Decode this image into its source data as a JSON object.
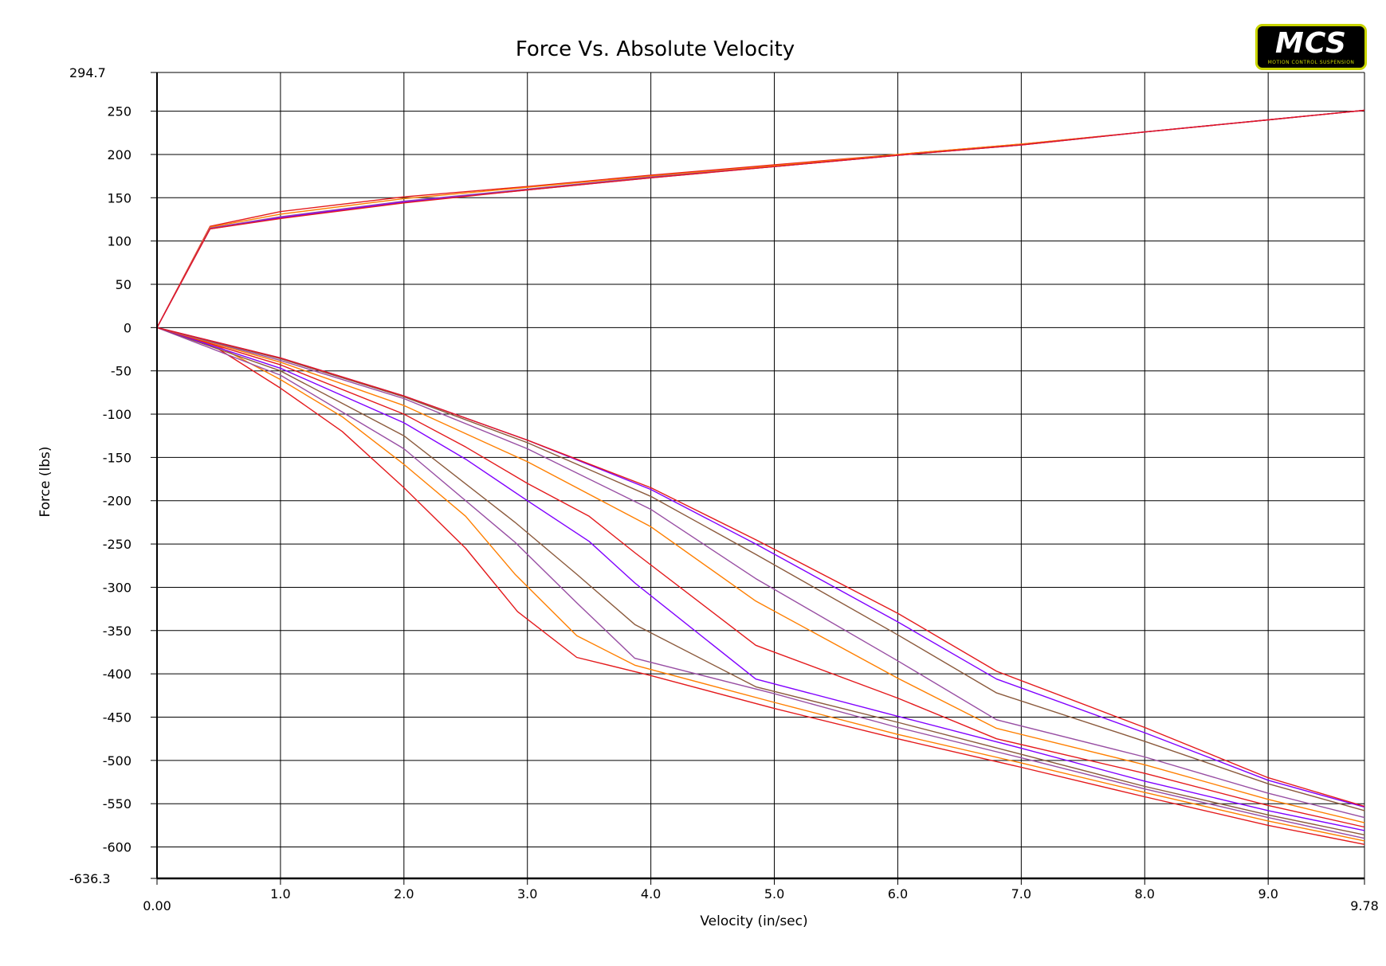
{
  "logo": {
    "main": "MCS",
    "sub": "MOTION CONTROL SUSPENSION"
  },
  "chart_data": {
    "type": "line",
    "title": "Force Vs. Absolute Velocity",
    "xlabel": "Velocity (in/sec)",
    "ylabel": "Force (lbs)",
    "xlim": [
      0,
      9.78
    ],
    "ylim": [
      -636.3,
      294.7
    ],
    "x_ticks": [
      {
        "v": 0,
        "label": "0.00"
      },
      {
        "v": 1,
        "label": "1.0"
      },
      {
        "v": 2,
        "label": "2.0"
      },
      {
        "v": 3,
        "label": "3.0"
      },
      {
        "v": 4,
        "label": "4.0"
      },
      {
        "v": 5,
        "label": "5.0"
      },
      {
        "v": 6,
        "label": "6.0"
      },
      {
        "v": 7,
        "label": "7.0"
      },
      {
        "v": 8,
        "label": "8.0"
      },
      {
        "v": 9,
        "label": "9.0"
      },
      {
        "v": 9.78,
        "label": "9.78"
      }
    ],
    "y_ticks": [
      {
        "v": 294.7,
        "label": "294.7"
      },
      {
        "v": 250,
        "label": "250"
      },
      {
        "v": 200,
        "label": "200"
      },
      {
        "v": 150,
        "label": "150"
      },
      {
        "v": 100,
        "label": "100"
      },
      {
        "v": 50,
        "label": "50"
      },
      {
        "v": 0,
        "label": "0"
      },
      {
        "v": -50,
        "label": "-50"
      },
      {
        "v": -100,
        "label": "-100"
      },
      {
        "v": -150,
        "label": "-150"
      },
      {
        "v": -200,
        "label": "-200"
      },
      {
        "v": -250,
        "label": "-250"
      },
      {
        "v": -300,
        "label": "-300"
      },
      {
        "v": -350,
        "label": "-350"
      },
      {
        "v": -400,
        "label": "-400"
      },
      {
        "v": -450,
        "label": "-450"
      },
      {
        "v": -500,
        "label": "-500"
      },
      {
        "v": -550,
        "label": "-550"
      },
      {
        "v": -600,
        "label": "-600"
      },
      {
        "v": -636.3,
        "label": "-636.3"
      }
    ],
    "grid": true,
    "legend": "none",
    "series": [
      {
        "color": "#e41a1c",
        "points": [
          [
            0,
            0
          ],
          [
            0.43,
            117
          ],
          [
            1.0,
            134
          ],
          [
            2.0,
            151
          ],
          [
            3.0,
            163
          ],
          [
            4.0,
            176
          ],
          [
            5.0,
            188
          ],
          [
            6.0,
            200
          ],
          [
            7.0,
            212
          ],
          [
            8.0,
            226
          ],
          [
            9.0,
            240
          ],
          [
            9.78,
            251
          ]
        ]
      },
      {
        "color": "#ff7f00",
        "points": [
          [
            0,
            0
          ],
          [
            0.43,
            116
          ],
          [
            1.0,
            131
          ],
          [
            2.0,
            149
          ],
          [
            3.0,
            162
          ],
          [
            4.0,
            175
          ],
          [
            5.0,
            187
          ],
          [
            6.0,
            200
          ],
          [
            7.0,
            212
          ],
          [
            8.0,
            226
          ],
          [
            9.0,
            240
          ],
          [
            9.78,
            251
          ]
        ]
      },
      {
        "color": "#984ea3",
        "points": [
          [
            0,
            0
          ],
          [
            0.43,
            115
          ],
          [
            1.0,
            128
          ],
          [
            2.0,
            146
          ],
          [
            3.0,
            160
          ],
          [
            4.0,
            174
          ],
          [
            5.0,
            186
          ],
          [
            6.0,
            199
          ],
          [
            7.0,
            211
          ],
          [
            8.0,
            226
          ],
          [
            9.0,
            240
          ],
          [
            9.78,
            251
          ]
        ]
      },
      {
        "color": "#8000ff",
        "points": [
          [
            0,
            0
          ],
          [
            0.43,
            114
          ],
          [
            1.0,
            127
          ],
          [
            2.0,
            145
          ],
          [
            3.0,
            159
          ],
          [
            4.0,
            173
          ],
          [
            5.0,
            186
          ],
          [
            6.0,
            199
          ],
          [
            7.0,
            211
          ],
          [
            8.0,
            226
          ],
          [
            9.0,
            240
          ],
          [
            9.78,
            251
          ]
        ]
      },
      {
        "color": "#e41a1c",
        "points": [
          [
            0,
            0
          ],
          [
            0.43,
            114
          ],
          [
            1.0,
            126
          ],
          [
            2.0,
            144
          ],
          [
            3.0,
            159
          ],
          [
            4.0,
            173
          ],
          [
            5.0,
            186
          ],
          [
            6.0,
            199
          ],
          [
            7.0,
            211
          ],
          [
            8.0,
            226
          ],
          [
            9.0,
            240
          ],
          [
            9.78,
            251
          ]
        ]
      },
      {
        "color": "#e41a1c",
        "points": [
          [
            0,
            0
          ],
          [
            0.5,
            -25
          ],
          [
            1.0,
            -70
          ],
          [
            1.5,
            -120
          ],
          [
            2.0,
            -185
          ],
          [
            2.5,
            -255
          ],
          [
            2.92,
            -328
          ],
          [
            3.4,
            -381
          ],
          [
            4.0,
            -402
          ],
          [
            5.0,
            -440
          ],
          [
            6.0,
            -475
          ],
          [
            7.0,
            -508
          ],
          [
            8.0,
            -542
          ],
          [
            9.0,
            -575
          ],
          [
            9.78,
            -597
          ]
        ]
      },
      {
        "color": "#ff7f00",
        "points": [
          [
            0,
            0
          ],
          [
            0.5,
            -22
          ],
          [
            1.0,
            -60
          ],
          [
            1.5,
            -103
          ],
          [
            2.0,
            -158
          ],
          [
            2.5,
            -218
          ],
          [
            2.9,
            -285
          ],
          [
            3.4,
            -356
          ],
          [
            3.87,
            -390
          ],
          [
            5.0,
            -433
          ],
          [
            6.0,
            -470
          ],
          [
            7.0,
            -503
          ],
          [
            8.0,
            -537
          ],
          [
            9.0,
            -570
          ],
          [
            9.78,
            -593
          ]
        ]
      },
      {
        "color": "#984ea3",
        "points": [
          [
            0,
            0
          ],
          [
            1.0,
            -55
          ],
          [
            2.0,
            -140
          ],
          [
            2.9,
            -248
          ],
          [
            3.4,
            -318
          ],
          [
            3.87,
            -382
          ],
          [
            5.0,
            -423
          ],
          [
            6.0,
            -462
          ],
          [
            7.0,
            -497
          ],
          [
            8.0,
            -533
          ],
          [
            9.0,
            -566
          ],
          [
            9.78,
            -590
          ]
        ]
      },
      {
        "color": "#8b5a3c",
        "points": [
          [
            0,
            0
          ],
          [
            1.0,
            -50
          ],
          [
            2.0,
            -125
          ],
          [
            2.9,
            -225
          ],
          [
            3.4,
            -285
          ],
          [
            3.87,
            -343
          ],
          [
            4.85,
            -415
          ],
          [
            6.0,
            -456
          ],
          [
            7.0,
            -493
          ],
          [
            8.0,
            -530
          ],
          [
            9.0,
            -563
          ],
          [
            9.78,
            -586
          ]
        ]
      },
      {
        "color": "#8000ff",
        "points": [
          [
            0,
            0
          ],
          [
            1.0,
            -47
          ],
          [
            2.0,
            -110
          ],
          [
            2.5,
            -152
          ],
          [
            3.0,
            -200
          ],
          [
            3.5,
            -247
          ],
          [
            3.87,
            -295
          ],
          [
            4.85,
            -406
          ],
          [
            6.0,
            -449
          ],
          [
            7.0,
            -486
          ],
          [
            8.0,
            -524
          ],
          [
            9.0,
            -558
          ],
          [
            9.78,
            -581
          ]
        ]
      },
      {
        "color": "#e41a1c",
        "points": [
          [
            0,
            0
          ],
          [
            1.0,
            -43
          ],
          [
            2.0,
            -100
          ],
          [
            2.5,
            -138
          ],
          [
            3.0,
            -180
          ],
          [
            3.5,
            -218
          ],
          [
            3.87,
            -260
          ],
          [
            4.85,
            -367
          ],
          [
            6.0,
            -428
          ],
          [
            6.8,
            -475
          ],
          [
            8.0,
            -515
          ],
          [
            9.0,
            -552
          ],
          [
            9.78,
            -577
          ]
        ]
      },
      {
        "color": "#ff7f00",
        "points": [
          [
            0,
            0
          ],
          [
            1.0,
            -40
          ],
          [
            2.0,
            -90
          ],
          [
            3.0,
            -155
          ],
          [
            4.0,
            -230
          ],
          [
            4.85,
            -316
          ],
          [
            6.0,
            -405
          ],
          [
            6.8,
            -463
          ],
          [
            8.0,
            -505
          ],
          [
            9.0,
            -545
          ],
          [
            9.78,
            -572
          ]
        ]
      },
      {
        "color": "#984ea3",
        "points": [
          [
            0,
            0
          ],
          [
            1.0,
            -38
          ],
          [
            2.0,
            -82
          ],
          [
            3.0,
            -140
          ],
          [
            4.0,
            -210
          ],
          [
            4.85,
            -290
          ],
          [
            6.0,
            -385
          ],
          [
            6.8,
            -453
          ],
          [
            8.0,
            -496
          ],
          [
            9.0,
            -538
          ],
          [
            9.78,
            -566
          ]
        ]
      },
      {
        "color": "#8b5a3c",
        "points": [
          [
            0,
            0
          ],
          [
            1.0,
            -36
          ],
          [
            2.0,
            -80
          ],
          [
            3.0,
            -133
          ],
          [
            4.0,
            -195
          ],
          [
            4.85,
            -262
          ],
          [
            6.0,
            -355
          ],
          [
            6.8,
            -422
          ],
          [
            8.0,
            -478
          ],
          [
            9.0,
            -527
          ],
          [
            9.78,
            -558
          ]
        ]
      },
      {
        "color": "#8000ff",
        "points": [
          [
            0,
            0
          ],
          [
            1.0,
            -35
          ],
          [
            2.0,
            -79
          ],
          [
            3.0,
            -130
          ],
          [
            4.0,
            -187
          ],
          [
            4.85,
            -250
          ],
          [
            6.0,
            -340
          ],
          [
            6.8,
            -406
          ],
          [
            8.0,
            -468
          ],
          [
            9.0,
            -523
          ],
          [
            9.78,
            -554
          ]
        ]
      },
      {
        "color": "#e41a1c",
        "points": [
          [
            0,
            0
          ],
          [
            1.0,
            -35
          ],
          [
            2.0,
            -79
          ],
          [
            3.0,
            -130
          ],
          [
            4.0,
            -185
          ],
          [
            4.85,
            -245
          ],
          [
            6.0,
            -330
          ],
          [
            6.8,
            -397
          ],
          [
            8.0,
            -462
          ],
          [
            9.0,
            -520
          ],
          [
            9.78,
            -553
          ]
        ]
      }
    ]
  }
}
